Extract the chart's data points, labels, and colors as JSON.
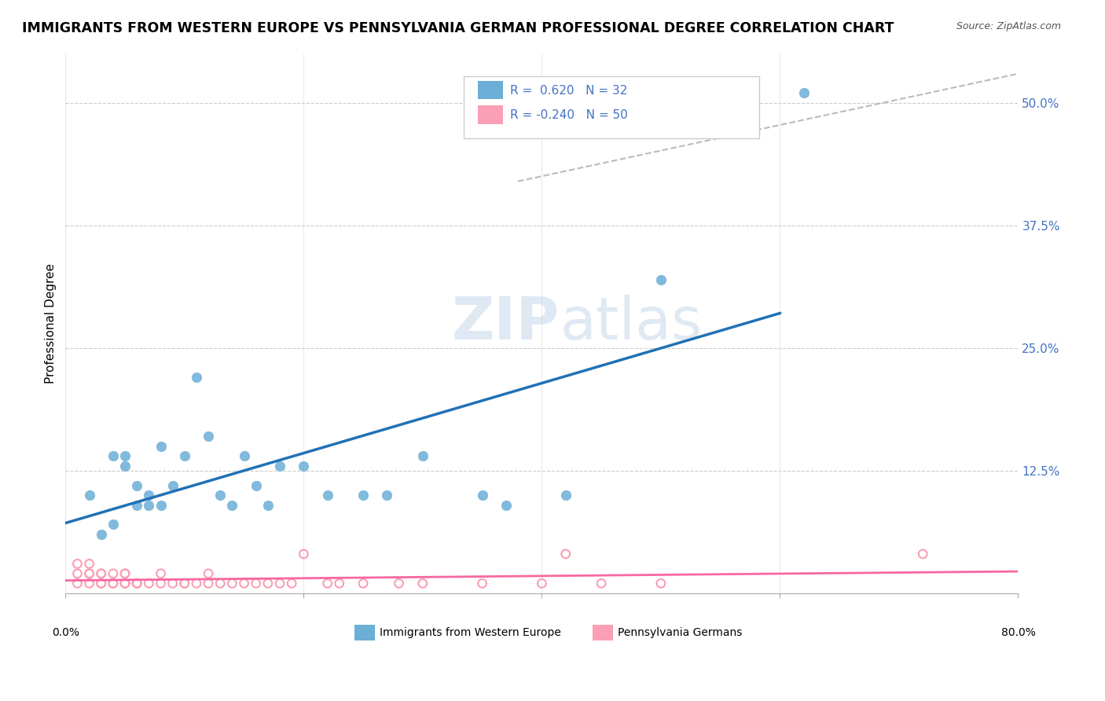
{
  "title": "IMMIGRANTS FROM WESTERN EUROPE VS PENNSYLVANIA GERMAN PROFESSIONAL DEGREE CORRELATION CHART",
  "source": "Source: ZipAtlas.com",
  "ylabel": "Professional Degree",
  "ytick_labels": [
    "12.5%",
    "25.0%",
    "37.5%",
    "50.0%"
  ],
  "ytick_values": [
    0.125,
    0.25,
    0.375,
    0.5
  ],
  "xmin": 0.0,
  "xmax": 0.8,
  "ymin": 0.0,
  "ymax": 0.55,
  "blue_color": "#6baed6",
  "pink_color": "#fa9fb5",
  "blue_line_color": "#2171b5",
  "pink_line_color": "#f768a1",
  "gray_dash_color": "#bbbbbb",
  "blue_scatter_x": [
    0.02,
    0.03,
    0.04,
    0.04,
    0.05,
    0.05,
    0.06,
    0.06,
    0.07,
    0.07,
    0.08,
    0.08,
    0.09,
    0.1,
    0.11,
    0.12,
    0.13,
    0.14,
    0.15,
    0.16,
    0.17,
    0.18,
    0.2,
    0.22,
    0.25,
    0.27,
    0.3,
    0.35,
    0.37,
    0.42,
    0.5,
    0.62
  ],
  "blue_scatter_y": [
    0.1,
    0.06,
    0.14,
    0.07,
    0.13,
    0.14,
    0.09,
    0.11,
    0.09,
    0.1,
    0.09,
    0.15,
    0.11,
    0.14,
    0.22,
    0.16,
    0.1,
    0.09,
    0.14,
    0.11,
    0.09,
    0.13,
    0.13,
    0.1,
    0.1,
    0.1,
    0.14,
    0.1,
    0.09,
    0.1,
    0.32,
    0.51
  ],
  "pink_scatter_x": [
    0.01,
    0.01,
    0.01,
    0.02,
    0.02,
    0.02,
    0.02,
    0.03,
    0.03,
    0.03,
    0.03,
    0.04,
    0.04,
    0.04,
    0.05,
    0.05,
    0.05,
    0.05,
    0.05,
    0.06,
    0.06,
    0.06,
    0.07,
    0.08,
    0.08,
    0.09,
    0.1,
    0.1,
    0.11,
    0.12,
    0.12,
    0.13,
    0.14,
    0.15,
    0.16,
    0.17,
    0.18,
    0.19,
    0.2,
    0.22,
    0.23,
    0.25,
    0.28,
    0.3,
    0.35,
    0.4,
    0.42,
    0.45,
    0.5,
    0.72
  ],
  "pink_scatter_y": [
    0.01,
    0.02,
    0.03,
    0.01,
    0.02,
    0.03,
    0.02,
    0.01,
    0.02,
    0.01,
    0.02,
    0.01,
    0.02,
    0.01,
    0.01,
    0.02,
    0.01,
    0.01,
    0.02,
    0.01,
    0.01,
    0.01,
    0.01,
    0.02,
    0.01,
    0.01,
    0.01,
    0.01,
    0.01,
    0.01,
    0.02,
    0.01,
    0.01,
    0.01,
    0.01,
    0.01,
    0.01,
    0.01,
    0.04,
    0.01,
    0.01,
    0.01,
    0.01,
    0.01,
    0.01,
    0.01,
    0.04,
    0.01,
    0.01,
    0.04
  ]
}
